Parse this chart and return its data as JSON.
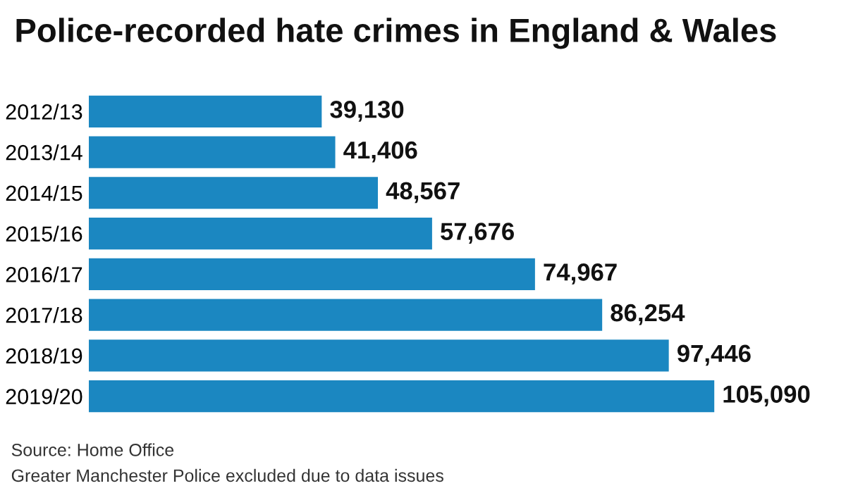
{
  "chart_data": {
    "type": "bar",
    "orientation": "horizontal",
    "title": "Police-recorded hate crimes in England & Wales",
    "categories": [
      "2012/13",
      "2013/14",
      "2014/15",
      "2015/16",
      "2016/17",
      "2017/18",
      "2018/19",
      "2019/20"
    ],
    "values": [
      39130,
      41406,
      48567,
      57676,
      74967,
      86254,
      97446,
      105090
    ],
    "value_labels": [
      "39,130",
      "41,406",
      "48,567",
      "57,676",
      "74,967",
      "86,254",
      "97,446",
      "105,090"
    ],
    "color": "#1b87c1",
    "annotations": [
      "Source: Home Office",
      "Greater Manchester Police excluded due to data issues"
    ]
  }
}
